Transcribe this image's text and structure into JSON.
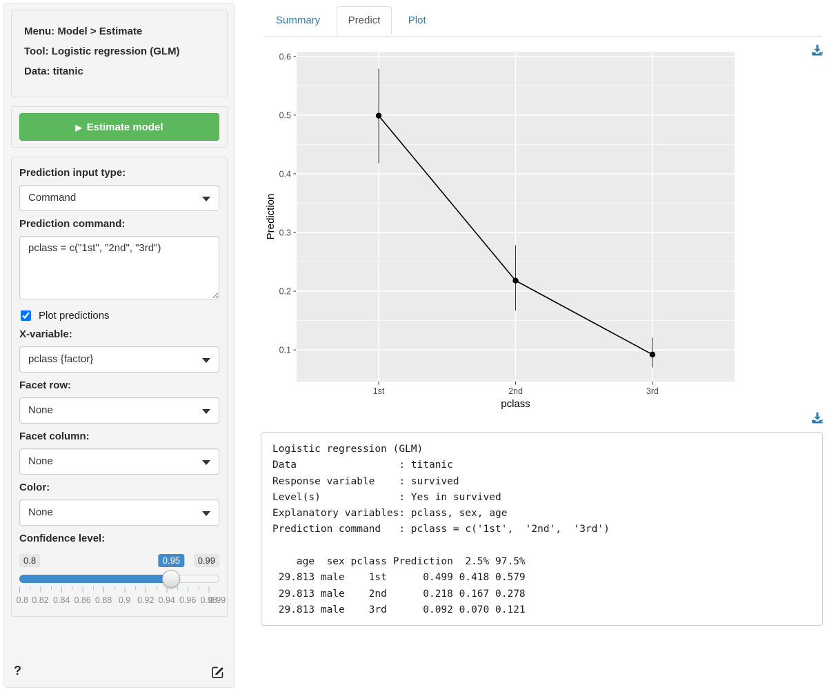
{
  "sidebar": {
    "info": [
      "Menu: Model > Estimate",
      "Tool: Logistic regression (GLM)",
      "Data: titanic"
    ],
    "estimate_button": "Estimate model",
    "play_icon": "▶",
    "prediction_input_type": {
      "label": "Prediction input type:",
      "value": "Command"
    },
    "prediction_command": {
      "label": "Prediction command:",
      "value": "pclass = c(\"1st\", \"2nd\", \"3rd\")"
    },
    "plot_predictions": {
      "label": "Plot predictions",
      "checked": true
    },
    "x_variable": {
      "label": "X-variable:",
      "value": "pclass {factor}"
    },
    "facet_row": {
      "label": "Facet row:",
      "value": "None"
    },
    "facet_column": {
      "label": "Facet column:",
      "value": "None"
    },
    "color": {
      "label": "Color:",
      "value": "None"
    },
    "confidence": {
      "label": "Confidence level:",
      "min": "0.8",
      "max": "0.99",
      "value": "0.95",
      "tick_labels": [
        "0.8",
        "0.82",
        "0.84",
        "0.86",
        "0.88",
        "0.9",
        "0.92",
        "0.94",
        "0.96",
        "0.98",
        "0.99"
      ]
    },
    "help": "?"
  },
  "tabs": [
    {
      "label": "Summary",
      "active": false
    },
    {
      "label": "Predict",
      "active": true
    },
    {
      "label": "Plot",
      "active": false
    }
  ],
  "colors": {
    "accent_blue": "#317eac",
    "slider_blue": "#428bca",
    "button_green": "#5cb85c",
    "panel_gray": "#ebebeb"
  },
  "chart_data": {
    "type": "line",
    "categories": [
      "1st",
      "2nd",
      "3rd"
    ],
    "series": [
      {
        "name": "Prediction",
        "values": [
          0.499,
          0.218,
          0.092
        ]
      }
    ],
    "ci_low": [
      0.418,
      0.167,
      0.07
    ],
    "ci_high": [
      0.579,
      0.278,
      0.121
    ],
    "xlabel": "pclass",
    "ylabel": "Prediction",
    "yticks": [
      0.1,
      0.2,
      0.3,
      0.4,
      0.5,
      0.6
    ],
    "ylim": [
      0.046,
      0.608
    ],
    "grid": true,
    "legend": "none",
    "panel_bg": "#ebebeb",
    "grid_color": "#ffffff"
  },
  "output": {
    "lines": [
      "Logistic regression (GLM)",
      "Data                 : titanic",
      "Response variable    : survived",
      "Level(s)             : Yes in survived",
      "Explanatory variables: pclass, sex, age",
      "Prediction command   : pclass = c('1st',  '2nd',  '3rd')",
      "",
      "    age  sex pclass Prediction  2.5% 97.5%",
      " 29.813 male    1st      0.499 0.418 0.579",
      " 29.813 male    2nd      0.218 0.167 0.278",
      " 29.813 male    3rd      0.092 0.070 0.121"
    ]
  }
}
